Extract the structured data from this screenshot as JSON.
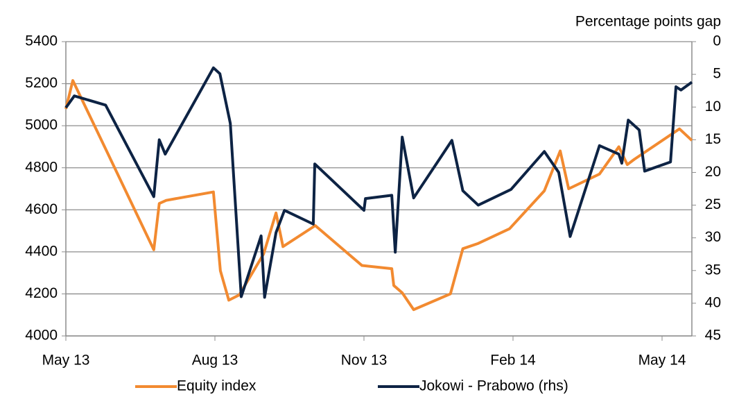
{
  "chart_data": {
    "type": "line",
    "y2_axis_label": "Percentage points gap",
    "xlim": [
      0,
      12.6
    ],
    "xticks": [
      {
        "value": 0,
        "label": "May 13"
      },
      {
        "value": 3,
        "label": "Aug 13"
      },
      {
        "value": 6,
        "label": "Nov 13"
      },
      {
        "value": 9,
        "label": "Feb 14"
      },
      {
        "value": 12,
        "label": "May 14"
      }
    ],
    "ylim": [
      4000,
      5400
    ],
    "yticks": [
      4000,
      4200,
      4400,
      4600,
      4800,
      5000,
      5200,
      5400
    ],
    "y2lim": [
      45,
      0
    ],
    "y2ticks": [
      0,
      5,
      10,
      15,
      20,
      25,
      30,
      35,
      40,
      45
    ],
    "grid": true,
    "legend": "bottom",
    "series": [
      {
        "name": "Equity index",
        "color": "#f28a30",
        "axis": "y",
        "x": [
          0,
          0.14,
          0.84,
          1.77,
          1.88,
          2.02,
          2.97,
          3.11,
          3.28,
          3.49,
          3.98,
          4.23,
          4.37,
          5.02,
          5.96,
          6.56,
          6.6,
          6.77,
          7,
          7.74,
          7.99,
          8.3,
          8.93,
          9.63,
          9.95,
          10.12,
          10.74,
          11.13,
          11.3,
          11.44,
          12.35,
          12.6
        ],
        "values": [
          5080,
          5215,
          4870,
          4410,
          4630,
          4645,
          4685,
          4310,
          4170,
          4195,
          4390,
          4585,
          4425,
          4525,
          4335,
          4320,
          4240,
          4205,
          4125,
          4200,
          4415,
          4440,
          4510,
          4690,
          4880,
          4700,
          4770,
          4900,
          4815,
          4840,
          4985,
          4930
        ]
      },
      {
        "name": "Jokowi - Prabowo (rhs)",
        "color": "#0d2344",
        "axis": "y2",
        "x": [
          0,
          0.17,
          0.8,
          1.77,
          1.88,
          2,
          2.97,
          3.1,
          3.31,
          3.53,
          3.93,
          4,
          4.23,
          4.4,
          4.98,
          5.01,
          6,
          6.03,
          6.56,
          6.63,
          6.77,
          7,
          7.77,
          7.99,
          8.3,
          8.96,
          9.63,
          9.92,
          10.15,
          10.74,
          11.13,
          11.19,
          11.32,
          11.54,
          11.65,
          12.17,
          12.28,
          12.38,
          12.6
        ],
        "values": [
          10.1,
          8.3,
          9.7,
          23.7,
          15,
          17.2,
          4,
          4.9,
          12.5,
          39,
          29.7,
          39.1,
          29.2,
          25.8,
          27.9,
          18.7,
          25.8,
          24,
          23.5,
          32.2,
          14.6,
          23.9,
          15.1,
          22.8,
          25,
          22.6,
          16.8,
          20,
          29.8,
          15.9,
          17.2,
          18.6,
          12,
          13.5,
          19.8,
          18.4,
          6.9,
          7.4,
          6.2
        ]
      }
    ]
  }
}
